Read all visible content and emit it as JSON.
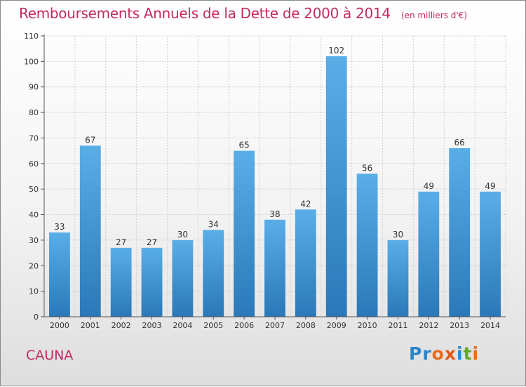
{
  "page": {
    "place_name": "CAUNA",
    "logo_text": "Proxiti"
  },
  "chart_data": {
    "type": "bar",
    "title": "Remboursements Annuels de la Dette de 2000 à 2014",
    "unit_note": "(en milliers d'€)",
    "categories": [
      "2000",
      "2001",
      "2002",
      "2003",
      "2004",
      "2005",
      "2006",
      "2007",
      "2008",
      "2009",
      "2010",
      "2011",
      "2012",
      "2013",
      "2014"
    ],
    "values": [
      33,
      67,
      27,
      27,
      30,
      34,
      65,
      38,
      42,
      102,
      56,
      30,
      49,
      66,
      49
    ],
    "ylim": [
      0,
      110
    ],
    "yticks": [
      0,
      10,
      20,
      30,
      40,
      50,
      60,
      70,
      80,
      90,
      100,
      110
    ],
    "grid": true,
    "colors": {
      "bar_top": "#5aaee8",
      "bar_bottom": "#2a78b8",
      "grid": "#cfcfcf",
      "axis": "#555555",
      "title": "#c42a63"
    }
  }
}
